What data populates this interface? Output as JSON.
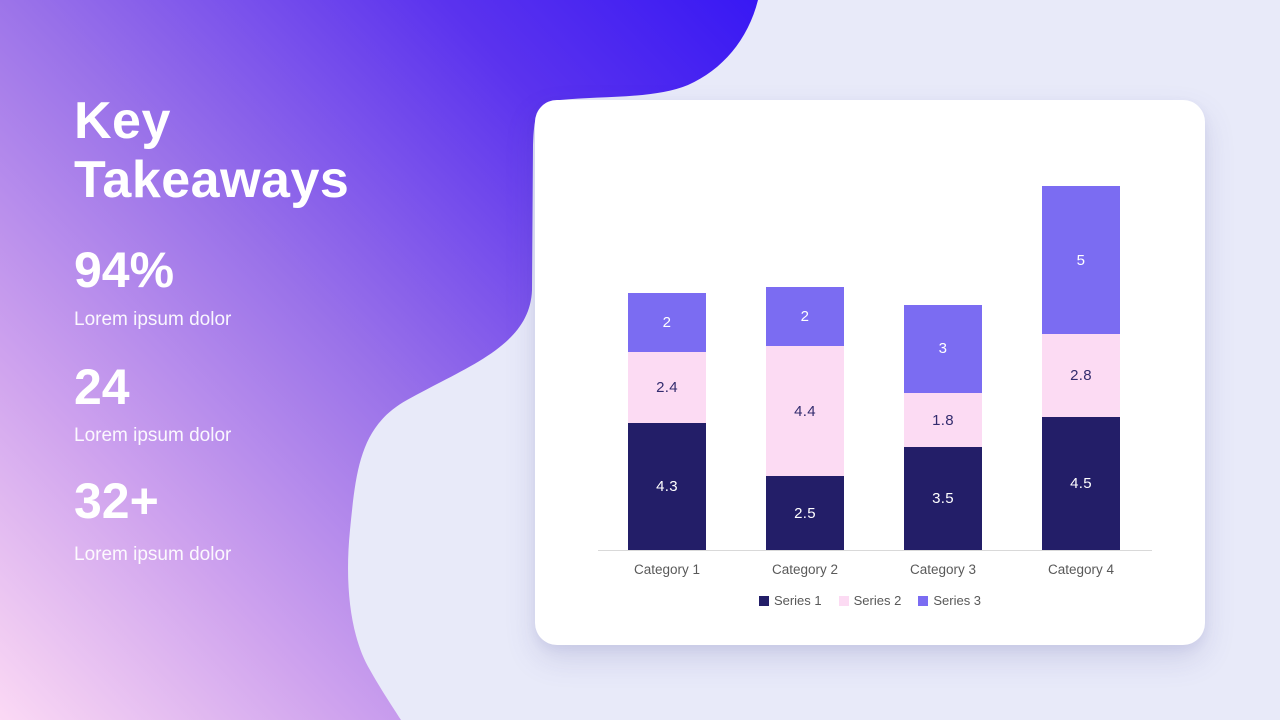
{
  "background": {
    "page_bg": "#e8eaf9",
    "blob_gradient": [
      "#fbd9f4",
      "#cfa3ee",
      "#9a72e9",
      "#5b33ee",
      "#2b0ef6"
    ]
  },
  "left_panel": {
    "title": "Key\nTakeaways",
    "stats": [
      {
        "value": "94%",
        "label": "Lorem ipsum dolor"
      },
      {
        "value": "24",
        "label": "Lorem ipsum dolor"
      },
      {
        "value": "32+",
        "label": "Lorem ipsum dolor"
      }
    ]
  },
  "chart_data": {
    "type": "bar",
    "stacked": true,
    "title": "",
    "categories": [
      "Category 1",
      "Category 2",
      "Category 3",
      "Category 4"
    ],
    "series": [
      {
        "name": "Series 1",
        "color": "#231e68",
        "label_color": "#ffffff",
        "values": [
          4.3,
          2.5,
          3.5,
          4.5
        ]
      },
      {
        "name": "Series 2",
        "color": "#fcdbf3",
        "label_color": "#332c6e",
        "values": [
          2.4,
          4.4,
          1.8,
          2.8
        ]
      },
      {
        "name": "Series 3",
        "color": "#7b6cf2",
        "label_color": "#ffffff",
        "values": [
          2,
          2,
          3,
          5
        ]
      }
    ],
    "totals": [
      8.7,
      8.9,
      8.3,
      12.3
    ],
    "ylim": [
      0,
      12.3
    ],
    "data_labels": true,
    "legend_position": "bottom",
    "axis_color": "#d9d9d9",
    "tick_label_color": "#595959",
    "grid": false
  }
}
